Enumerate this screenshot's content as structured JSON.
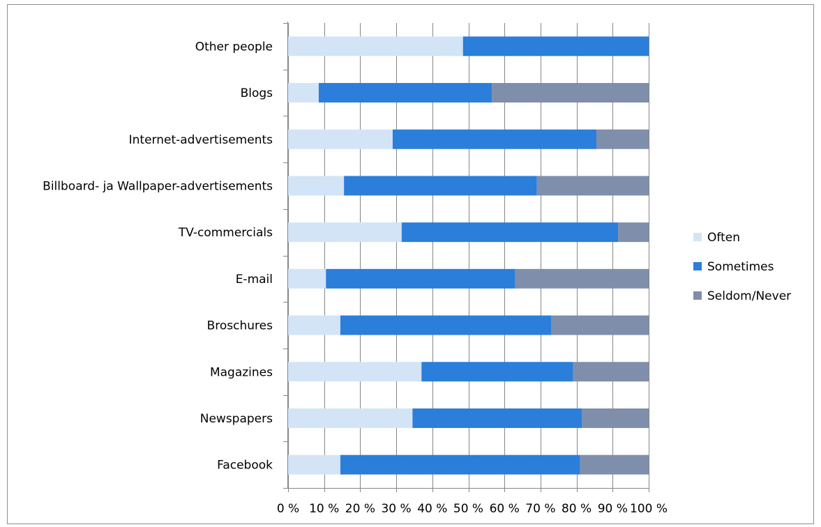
{
  "chart_data": {
    "type": "bar",
    "orientation": "horizontal",
    "stacked": "percent",
    "categories": [
      "Other people",
      "Blogs",
      "Internet-advertisements",
      "Billboard- ja Wallpaper-advertisements",
      "TV-commercials",
      "E-mail",
      "Broschures",
      "Magazines",
      "Newspapers",
      "Facebook"
    ],
    "series": [
      {
        "name": "Often",
        "color": "#d3e4f7",
        "values": [
          48.5,
          8.5,
          29,
          15.5,
          31.5,
          10.5,
          14.5,
          37,
          34.5,
          14.5
        ]
      },
      {
        "name": "Sometimes",
        "color": "#2b7fdb",
        "values": [
          51.5,
          48,
          56.5,
          53.5,
          60,
          52.5,
          58.5,
          42,
          47,
          66.5
        ]
      },
      {
        "name": "Seldom/Never",
        "color": "#7f8fab",
        "values": [
          0,
          43.5,
          14.5,
          31,
          8.5,
          37,
          27,
          21,
          18.5,
          19
        ]
      }
    ],
    "xlim": [
      0,
      100
    ],
    "x_ticks": [
      "0 %",
      "10 %",
      "20 %",
      "30 %",
      "40 %",
      "50 %",
      "60 %",
      "70 %",
      "80 %",
      "90 %",
      "100 %"
    ],
    "grid": true,
    "legend_position": "right",
    "title": "",
    "xlabel": "",
    "ylabel": ""
  }
}
